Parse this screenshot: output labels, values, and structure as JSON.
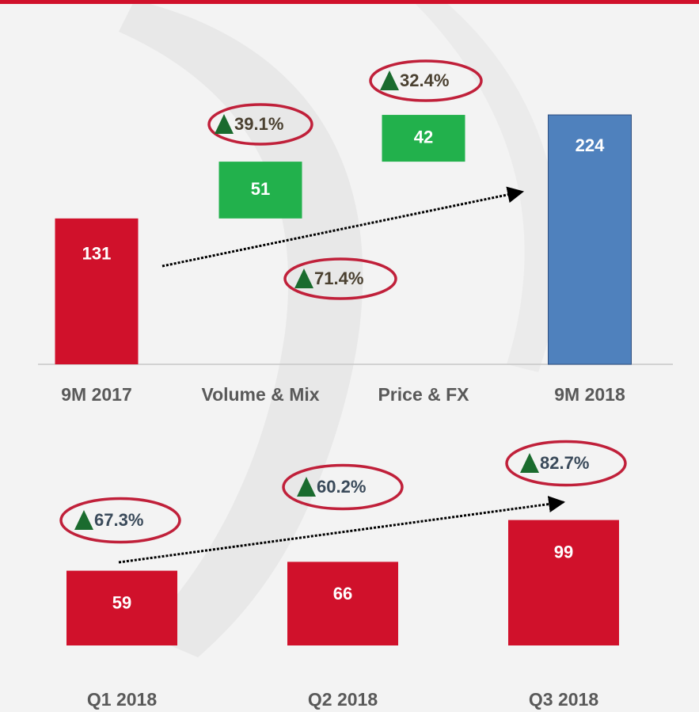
{
  "chart_data": [
    {
      "type": "waterfall",
      "categories": [
        "9M 2017",
        "Volume & Mix",
        "Price & FX",
        "9M 2018"
      ],
      "values": [
        131,
        51,
        42,
        224
      ],
      "measures": [
        "total",
        "relative",
        "relative",
        "total"
      ],
      "colors": [
        "#d0112b",
        "#22b14c",
        "#22b14c",
        "#4f81bd"
      ],
      "annotations": [
        "39.1%",
        "32.4%",
        "71.4%"
      ]
    },
    {
      "type": "bar",
      "categories": [
        "Q1 2018",
        "Q2 2018",
        "Q3 2018"
      ],
      "values": [
        59,
        66,
        99
      ],
      "color": "#d0112b",
      "annotations": [
        "67.3%",
        "60.2%",
        "82.7%"
      ]
    }
  ]
}
